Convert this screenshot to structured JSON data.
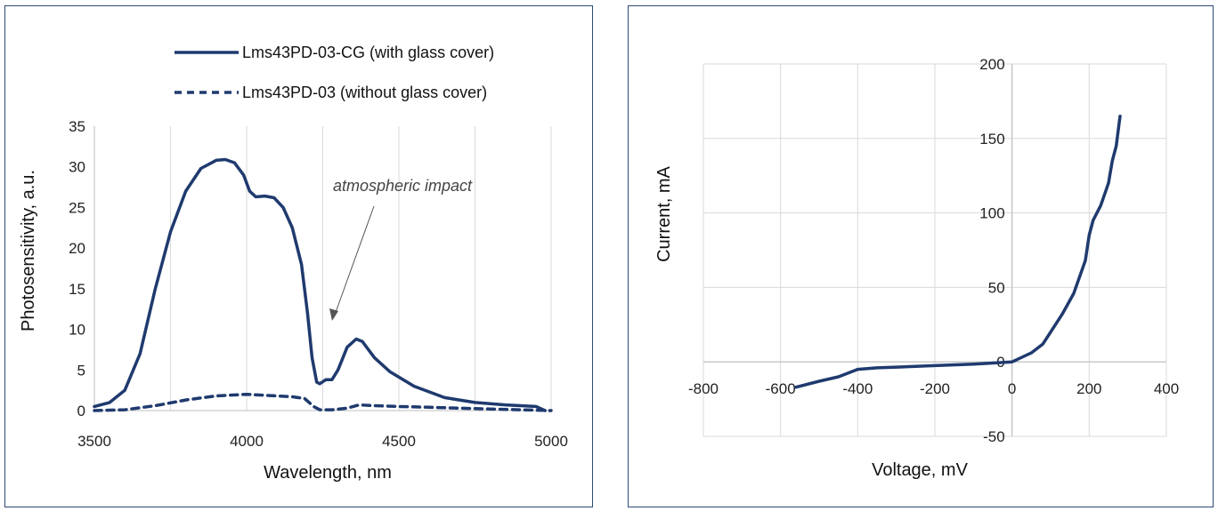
{
  "colors": {
    "series": "#1f3a6e",
    "grid": "#d9d9d9",
    "frame": "#2e4a78",
    "annotation": "#444444"
  },
  "chart_data": [
    {
      "type": "line",
      "title": "",
      "xlabel": "Wavelength, nm",
      "ylabel": "Photosensitivity, a.u.",
      "xlim": [
        3500,
        5000
      ],
      "ylim": [
        0,
        35
      ],
      "xticks": [
        3500,
        4000,
        4500,
        5000
      ],
      "yticks": [
        0,
        5,
        10,
        15,
        20,
        25,
        30,
        35
      ],
      "grid": "vertical",
      "legend_position": "top",
      "series": [
        {
          "name": "Lms43PD-03-CG (with glass cover)",
          "style": "solid",
          "x": [
            3500,
            3550,
            3600,
            3650,
            3700,
            3750,
            3800,
            3850,
            3900,
            3930,
            3960,
            3990,
            4010,
            4030,
            4060,
            4090,
            4120,
            4150,
            4180,
            4200,
            4215,
            4230,
            4240,
            4260,
            4280,
            4300,
            4330,
            4360,
            4380,
            4420,
            4470,
            4550,
            4650,
            4750,
            4850,
            4950,
            4980
          ],
          "y": [
            0.5,
            1.0,
            2.5,
            7.0,
            15.0,
            22.0,
            27.0,
            29.8,
            30.8,
            30.9,
            30.5,
            29.0,
            27.0,
            26.3,
            26.4,
            26.2,
            25.0,
            22.5,
            18.0,
            12.0,
            6.5,
            3.5,
            3.3,
            3.8,
            3.8,
            5.0,
            7.8,
            8.8,
            8.5,
            6.5,
            4.8,
            3.0,
            1.6,
            1.0,
            0.7,
            0.5,
            0.0
          ]
        },
        {
          "name": "Lms43PD-03 (without glass cover)",
          "style": "dashed",
          "x": [
            3500,
            3600,
            3700,
            3800,
            3900,
            4000,
            4100,
            4150,
            4190,
            4220,
            4240,
            4280,
            4330,
            4370,
            4420,
            4500,
            4600,
            4700,
            4800,
            4900,
            5000
          ],
          "y": [
            0.0,
            0.1,
            0.6,
            1.3,
            1.8,
            2.0,
            1.8,
            1.7,
            1.5,
            0.5,
            0.1,
            0.1,
            0.3,
            0.7,
            0.6,
            0.5,
            0.4,
            0.3,
            0.2,
            0.1,
            0.0
          ]
        }
      ],
      "annotations": [
        {
          "text": "atmospheric impact",
          "x": 4270,
          "y": 11
        }
      ]
    },
    {
      "type": "line",
      "title": "",
      "xlabel": "Voltage, mV",
      "ylabel": "Current, mA",
      "xlim": [
        -800,
        400
      ],
      "ylim": [
        -50,
        200
      ],
      "xticks": [
        -800,
        -600,
        -400,
        -200,
        0,
        200,
        400
      ],
      "yticks": [
        -50,
        0,
        50,
        100,
        150,
        200
      ],
      "grid": "both",
      "legend_position": "none",
      "series": [
        {
          "name": "",
          "style": "solid",
          "x": [
            -560,
            -500,
            -450,
            -400,
            -350,
            -300,
            -200,
            -100,
            0,
            50,
            80,
            100,
            130,
            160,
            190,
            200,
            210,
            230,
            250,
            260,
            270,
            280
          ],
          "y": [
            -17,
            -13,
            -10,
            -5,
            -4,
            -3.5,
            -2.5,
            -1.5,
            0,
            6,
            12,
            20,
            32,
            46,
            68,
            85,
            95,
            105,
            120,
            135,
            145,
            165
          ]
        }
      ],
      "annotations": []
    }
  ]
}
